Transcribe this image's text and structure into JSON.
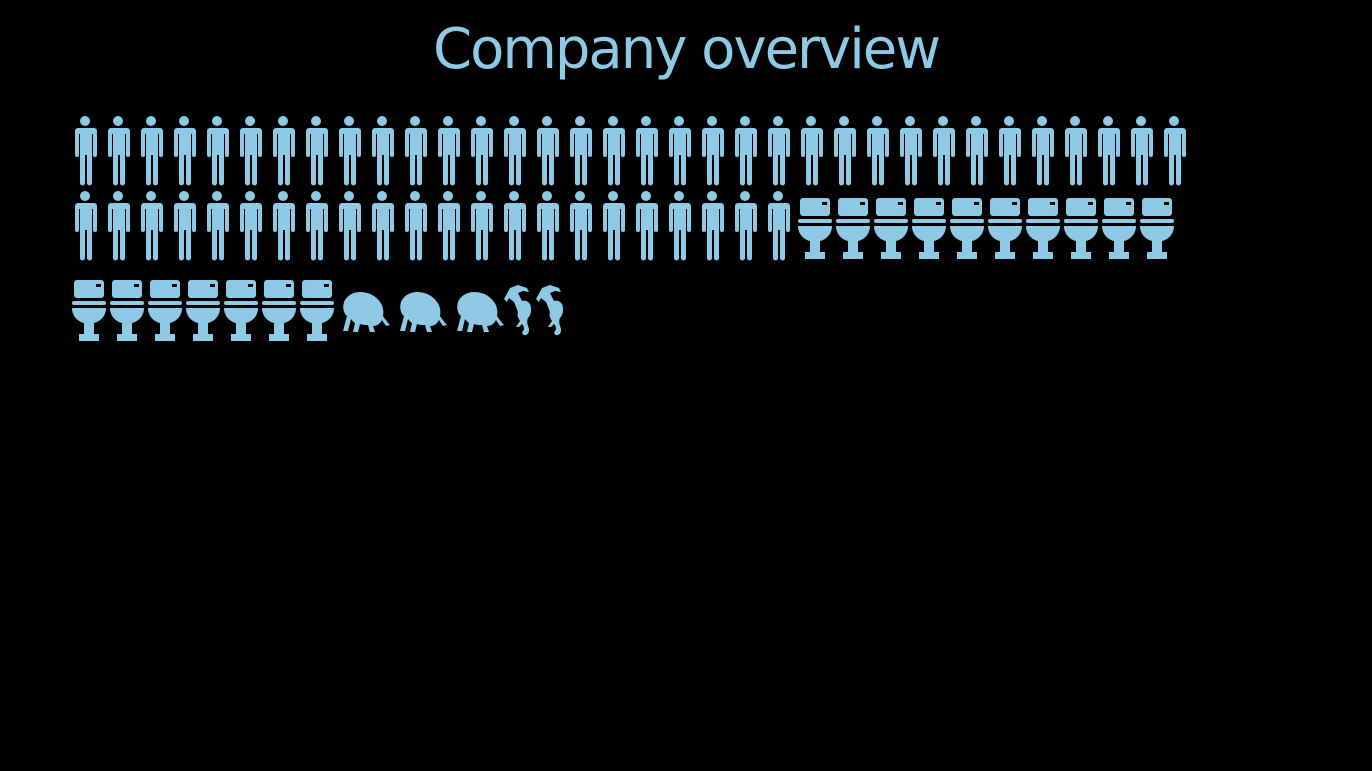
{
  "slide": {
    "title": "Company overview"
  },
  "colors": {
    "background": "#000000",
    "icon": "#8ecae6",
    "title": "#8ecae6"
  },
  "icon_groups": [
    {
      "icon": "person-icon",
      "count": 56
    },
    {
      "icon": "toilet-icon",
      "count": 17
    },
    {
      "icon": "ape-icon",
      "count": 3
    },
    {
      "icon": "monkey-icon",
      "count": 2
    }
  ]
}
